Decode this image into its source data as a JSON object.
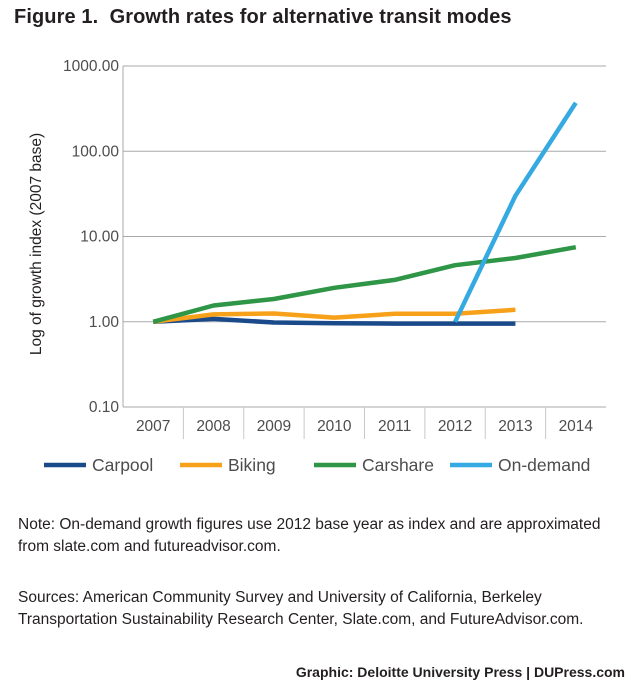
{
  "figure": {
    "title": "Figure 1.  Growth rates for alternative transit modes"
  },
  "chart_data": {
    "type": "line",
    "title": "Figure 1.  Growth rates for alternative transit modes",
    "xlabel": "",
    "ylabel": "Log of growth index (2007 base)",
    "y_scale": "log",
    "ylim": [
      0.1,
      1000
    ],
    "y_ticks": [
      0.1,
      1,
      10,
      100,
      1000
    ],
    "y_tick_labels": [
      "0.10",
      "1.00",
      "10.00",
      "100.00",
      "1000.00"
    ],
    "categories": [
      "2007",
      "2008",
      "2009",
      "2010",
      "2011",
      "2012",
      "2013",
      "2014"
    ],
    "grid": "horizontal",
    "legend_position": "bottom",
    "series": [
      {
        "name": "Carpool",
        "color": "#1b4a8a",
        "values": [
          1.0,
          1.08,
          0.98,
          0.96,
          0.95,
          0.95,
          0.95,
          null
        ]
      },
      {
        "name": "Biking",
        "color": "#f7a11a",
        "values": [
          1.0,
          1.22,
          1.25,
          1.12,
          1.24,
          1.24,
          1.38,
          null
        ]
      },
      {
        "name": "Carshare",
        "color": "#2e9646",
        "values": [
          1.0,
          1.55,
          1.85,
          2.5,
          3.1,
          4.6,
          5.6,
          7.5
        ]
      },
      {
        "name": "On-demand",
        "color": "#35a9e1",
        "values": [
          null,
          null,
          null,
          null,
          null,
          1.0,
          30,
          370
        ]
      }
    ]
  },
  "note": "Note: On-demand growth figures use 2012 base year as index and are approximated from slate.com and futureadvisor.com.",
  "sources": "Sources: American Community Survey and University of California, Berkeley Transportation Sustainability Research Center, Slate.com, and FutureAdvisor.com.",
  "credit": "Graphic: Deloitte University Press  |  DUPress.com"
}
